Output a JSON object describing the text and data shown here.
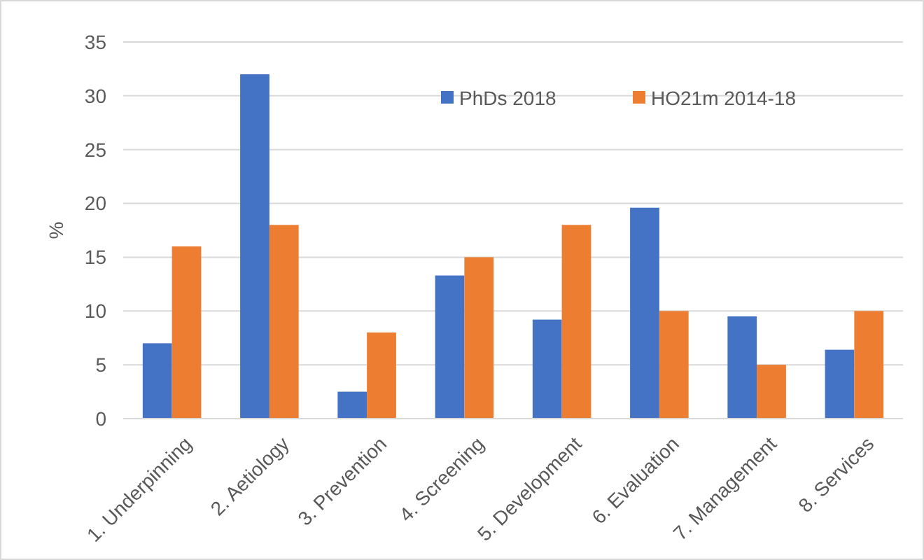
{
  "chart_data": {
    "type": "bar",
    "ylabel": "%",
    "categories": [
      "1. Underpinning",
      "2. Aetiology",
      "3. Prevention",
      "4. Screening",
      "5. Development",
      "6. Evaluation",
      "7. Management",
      "8. Services"
    ],
    "series": [
      {
        "name": "PhDs 2018",
        "color": "#4472c4",
        "values": [
          7,
          32,
          2.5,
          13.3,
          9.2,
          19.6,
          9.5,
          6.4
        ]
      },
      {
        "name": "HO21m 2014-18",
        "color": "#ed7d31",
        "values": [
          16,
          18,
          8,
          15,
          18,
          10,
          5,
          10
        ]
      }
    ],
    "ylim": [
      0,
      35
    ],
    "yticks": [
      0,
      5,
      10,
      15,
      20,
      25,
      30,
      35
    ],
    "grid": "y",
    "legend": "top right"
  }
}
